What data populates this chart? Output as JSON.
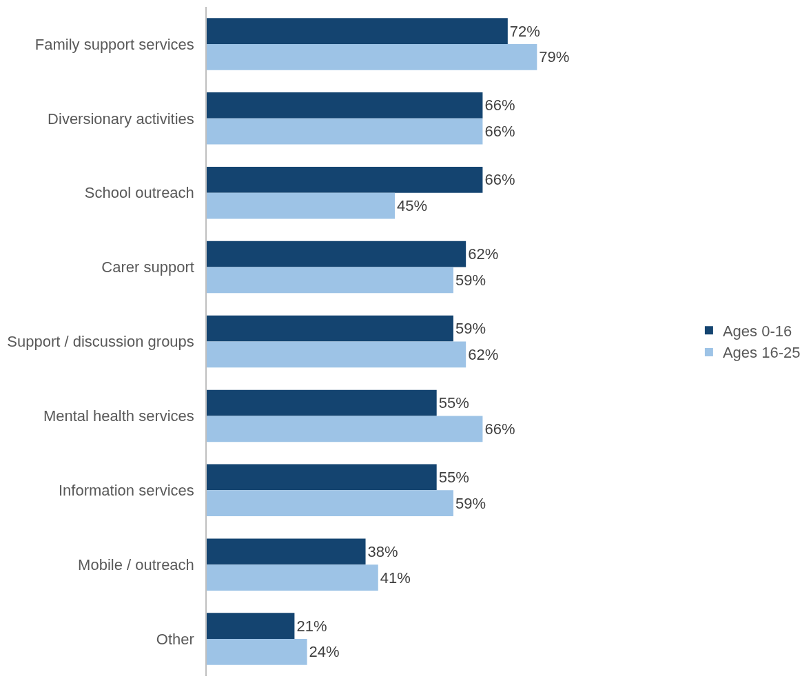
{
  "chart_data": {
    "type": "bar",
    "orientation": "horizontal",
    "categories": [
      "Family support services",
      "Diversionary activities",
      "School outreach",
      "Carer support",
      "Support / discussion groups",
      "Mental health services",
      "Information services",
      "Mobile / outreach",
      "Other"
    ],
    "series": [
      {
        "name": "Ages 0-16",
        "color": "#144470",
        "values": [
          72,
          66,
          66,
          62,
          59,
          55,
          55,
          38,
          21
        ],
        "value_labels": [
          "72%",
          "66%",
          "66%",
          "62%",
          "59%",
          "55%",
          "55%",
          "38%",
          "21%"
        ]
      },
      {
        "name": "Ages 16-25",
        "color": "#9dc3e6",
        "values": [
          79,
          66,
          45,
          59,
          62,
          66,
          59,
          41,
          24
        ],
        "value_labels": [
          "79%",
          "66%",
          "45%",
          "59%",
          "62%",
          "66%",
          "59%",
          "41%",
          "24%"
        ]
      }
    ],
    "legend": "right"
  }
}
